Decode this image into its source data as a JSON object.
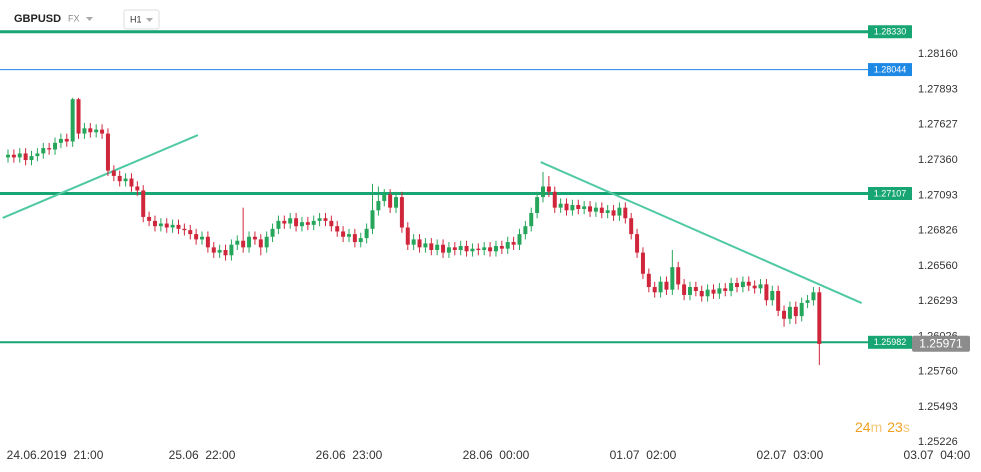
{
  "chart_data": {
    "type": "candlestick",
    "symbol": "GBPUSD",
    "market": "FX",
    "timeframe": "H1",
    "up_color": "#26a65b",
    "down_color": "#d0263b",
    "x": [
      0,
      1,
      2,
      3,
      4,
      5,
      6,
      7,
      8,
      9,
      10,
      11,
      12,
      13,
      14,
      15,
      16,
      17,
      18,
      19,
      20,
      21,
      22,
      23,
      24,
      25,
      26,
      27,
      28,
      29,
      30,
      31,
      32,
      33,
      34,
      35,
      36,
      37,
      38,
      39,
      40,
      41,
      42,
      43,
      44,
      45,
      46,
      47,
      48,
      49,
      50,
      51,
      52,
      53,
      54,
      55,
      56,
      57,
      58,
      59,
      60,
      61,
      62,
      63,
      64,
      65,
      66,
      67,
      68,
      69,
      70,
      71,
      72,
      73,
      74,
      75,
      76,
      77,
      78,
      79,
      80,
      81,
      82,
      83,
      84,
      85,
      86,
      87,
      88,
      89,
      90,
      91,
      92,
      93,
      94,
      95,
      96,
      97,
      98,
      99,
      100,
      101,
      102,
      103,
      104,
      105,
      106,
      107,
      108,
      109,
      110,
      111,
      112,
      113,
      114,
      115,
      116,
      117,
      118,
      119,
      120,
      121,
      122,
      123,
      124,
      125,
      126,
      127,
      128,
      129,
      130,
      131,
      132,
      133,
      134,
      135,
      136,
      137,
      138
    ],
    "open": [
      1.2738,
      1.274,
      1.2738,
      1.2741,
      1.2736,
      1.2739,
      1.2741,
      1.2745,
      1.2744,
      1.2749,
      1.2752,
      1.275,
      1.2782,
      1.2756,
      1.276,
      1.2757,
      1.2759,
      1.2756,
      1.2728,
      1.2724,
      1.272,
      1.2722,
      1.2716,
      1.2713,
      1.2693,
      1.269,
      1.2686,
      1.2688,
      1.2685,
      1.2687,
      1.2684,
      1.2683,
      1.268,
      1.2676,
      1.2678,
      1.267,
      1.2666,
      1.2668,
      1.2664,
      1.2672,
      1.2675,
      1.267,
      1.2678,
      1.2676,
      1.267,
      1.2678,
      1.2684,
      1.269,
      1.2688,
      1.2692,
      1.2686,
      1.2689,
      1.2687,
      1.269,
      1.2692,
      1.269,
      1.2686,
      1.2682,
      1.2678,
      1.268,
      1.2674,
      1.2677,
      1.2684,
      1.2698,
      1.2705,
      1.271,
      1.27,
      1.2708,
      1.2685,
      1.2672,
      1.2676,
      1.267,
      1.2673,
      1.2668,
      1.2672,
      1.2666,
      1.267,
      1.2668,
      1.2671,
      1.2667,
      1.2669,
      1.2668,
      1.267,
      1.2667,
      1.2671,
      1.2669,
      1.2674,
      1.2672,
      1.268,
      1.2686,
      1.2696,
      1.2708,
      1.2716,
      1.2712,
      1.27,
      1.2703,
      1.2698,
      1.2702,
      1.2699,
      1.2701,
      1.2697,
      1.27,
      1.2696,
      1.2698,
      1.2694,
      1.27,
      1.2692,
      1.268,
      1.2666,
      1.265,
      1.264,
      1.2636,
      1.2644,
      1.2638,
      1.2655,
      1.2642,
      1.2634,
      1.264,
      1.2637,
      1.2633,
      1.2638,
      1.2635,
      1.2639,
      1.2637,
      1.2643,
      1.264,
      1.2644,
      1.2641,
      1.2639,
      1.2642,
      1.263,
      1.2637,
      1.2622,
      1.2616,
      1.2625,
      1.2618,
      1.2628,
      1.263,
      1.2636
    ],
    "high": [
      1.2744,
      1.2744,
      1.2745,
      1.2745,
      1.2743,
      1.2745,
      1.2749,
      1.2749,
      1.2753,
      1.2756,
      1.2756,
      1.2783,
      1.2783,
      1.2764,
      1.2764,
      1.2763,
      1.2763,
      1.276,
      1.2732,
      1.2728,
      1.2726,
      1.2726,
      1.272,
      1.2717,
      1.2697,
      1.2694,
      1.2692,
      1.2692,
      1.2691,
      1.2691,
      1.2688,
      1.2687,
      1.2684,
      1.2682,
      1.2682,
      1.2674,
      1.2672,
      1.2672,
      1.2676,
      1.2679,
      1.27,
      1.2682,
      1.2682,
      1.268,
      1.2682,
      1.2688,
      1.2694,
      1.2694,
      1.2696,
      1.2696,
      1.2693,
      1.2693,
      1.2694,
      1.2696,
      1.2696,
      1.2694,
      1.269,
      1.2686,
      1.2684,
      1.2684,
      1.2681,
      1.2688,
      1.2718,
      1.2716,
      1.2714,
      1.2714,
      1.2712,
      1.2712,
      1.2689,
      1.268,
      1.268,
      1.2677,
      1.2677,
      1.2676,
      1.2676,
      1.2674,
      1.2674,
      1.2675,
      1.2675,
      1.2673,
      1.2673,
      1.2674,
      1.2674,
      1.2675,
      1.2675,
      1.2678,
      1.2678,
      1.2684,
      1.269,
      1.27,
      1.2712,
      1.2727,
      1.2724,
      1.2716,
      1.2707,
      1.2707,
      1.2706,
      1.2706,
      1.2705,
      1.2705,
      1.2704,
      1.2704,
      1.2702,
      1.2702,
      1.2704,
      1.2704,
      1.2696,
      1.2684,
      1.267,
      1.2654,
      1.2644,
      1.2648,
      1.2648,
      1.2668,
      1.2659,
      1.2646,
      1.2644,
      1.2644,
      1.2641,
      1.2642,
      1.2642,
      1.2643,
      1.2643,
      1.2647,
      1.2647,
      1.2648,
      1.2648,
      1.2645,
      1.2646,
      1.2646,
      1.2641,
      1.2641,
      1.2626,
      1.2629,
      1.2629,
      1.2632,
      1.2634,
      1.264,
      1.264
    ],
    "low": [
      1.2734,
      1.2734,
      1.2734,
      1.2732,
      1.2732,
      1.2735,
      1.2737,
      1.274,
      1.274,
      1.2745,
      1.2746,
      1.2746,
      1.2752,
      1.2752,
      1.2753,
      1.2753,
      1.2752,
      1.2724,
      1.272,
      1.2716,
      1.2716,
      1.2712,
      1.2709,
      1.2689,
      1.2686,
      1.2682,
      1.2682,
      1.2681,
      1.2681,
      1.268,
      1.2679,
      1.2676,
      1.2672,
      1.2672,
      1.2666,
      1.2662,
      1.2662,
      1.266,
      1.266,
      1.2668,
      1.2666,
      1.2666,
      1.2672,
      1.2664,
      1.2666,
      1.2674,
      1.268,
      1.2684,
      1.2684,
      1.2682,
      1.2682,
      1.2683,
      1.2683,
      1.2686,
      1.2686,
      1.2682,
      1.2678,
      1.2674,
      1.2674,
      1.267,
      1.267,
      1.2673,
      1.268,
      1.2694,
      1.2701,
      1.2696,
      1.2696,
      1.2681,
      1.2668,
      1.2668,
      1.2666,
      1.2666,
      1.2664,
      1.2664,
      1.2662,
      1.2662,
      1.2664,
      1.2664,
      1.2663,
      1.2663,
      1.2664,
      1.2664,
      1.2663,
      1.2663,
      1.2665,
      1.2665,
      1.2668,
      1.2668,
      1.2676,
      1.2682,
      1.2692,
      1.2704,
      1.2708,
      1.2696,
      1.2696,
      1.2694,
      1.2694,
      1.2695,
      1.2695,
      1.2693,
      1.2693,
      1.2692,
      1.2692,
      1.269,
      1.269,
      1.2688,
      1.2676,
      1.2662,
      1.2646,
      1.2636,
      1.2632,
      1.2632,
      1.2634,
      1.2634,
      1.2638,
      1.263,
      1.263,
      1.2633,
      1.2629,
      1.2629,
      1.2631,
      1.2631,
      1.2633,
      1.2633,
      1.2636,
      1.2636,
      1.2637,
      1.2635,
      1.2635,
      1.2626,
      1.2626,
      1.2618,
      1.261,
      1.2612,
      1.2612,
      1.2614,
      1.2624,
      1.2626,
      1.2581
    ],
    "close": [
      1.274,
      1.2738,
      1.2741,
      1.2736,
      1.2739,
      1.2741,
      1.2745,
      1.2744,
      1.2749,
      1.2752,
      1.275,
      1.2782,
      1.2756,
      1.276,
      1.2757,
      1.2759,
      1.2756,
      1.2728,
      1.2724,
      1.272,
      1.2722,
      1.2716,
      1.2713,
      1.2693,
      1.269,
      1.2686,
      1.2688,
      1.2685,
      1.2687,
      1.2684,
      1.2683,
      1.268,
      1.2676,
      1.2678,
      1.267,
      1.2666,
      1.2668,
      1.2664,
      1.2672,
      1.2675,
      1.267,
      1.2678,
      1.2676,
      1.267,
      1.2678,
      1.2684,
      1.269,
      1.2688,
      1.2692,
      1.2686,
      1.2689,
      1.2687,
      1.269,
      1.2692,
      1.269,
      1.2686,
      1.2682,
      1.2678,
      1.268,
      1.2674,
      1.2677,
      1.2684,
      1.2698,
      1.2705,
      1.271,
      1.27,
      1.2708,
      1.2685,
      1.2672,
      1.2676,
      1.267,
      1.2673,
      1.2668,
      1.2672,
      1.2666,
      1.267,
      1.2668,
      1.2671,
      1.2667,
      1.2669,
      1.2668,
      1.267,
      1.2667,
      1.2671,
      1.2669,
      1.2674,
      1.2672,
      1.268,
      1.2686,
      1.2696,
      1.2708,
      1.2716,
      1.2712,
      1.27,
      1.2703,
      1.2698,
      1.2702,
      1.2699,
      1.2701,
      1.2697,
      1.27,
      1.2696,
      1.2698,
      1.2694,
      1.27,
      1.2692,
      1.268,
      1.2666,
      1.265,
      1.264,
      1.2636,
      1.2644,
      1.2638,
      1.2655,
      1.2642,
      1.2634,
      1.264,
      1.2637,
      1.2633,
      1.2638,
      1.2635,
      1.2639,
      1.2637,
      1.2643,
      1.264,
      1.2644,
      1.2641,
      1.2639,
      1.2642,
      1.263,
      1.2637,
      1.2622,
      1.2616,
      1.2625,
      1.2618,
      1.2628,
      1.263,
      1.2636,
      1.2597
    ],
    "xlim": [
      -1.36,
      165.5
    ],
    "ylim": [
      1.2513,
      1.2857
    ],
    "xticks": [
      {
        "value": 8,
        "label": "24.06.2019  21:00"
      },
      {
        "value": 33,
        "label": "25.06  22:00"
      },
      {
        "value": 58,
        "label": "26.06  23:00"
      },
      {
        "value": 83,
        "label": "28.06  00:00"
      },
      {
        "value": 108,
        "label": "01.07  02:00"
      },
      {
        "value": 133,
        "label": "02.07  03:00"
      },
      {
        "value": 158,
        "label": "03.07  04:00"
      }
    ],
    "yticks": [
      {
        "value": 1.2816,
        "label": "1.28160"
      },
      {
        "value": 1.27893,
        "label": "1.27893"
      },
      {
        "value": 1.27627,
        "label": "1.27627"
      },
      {
        "value": 1.2736,
        "label": "1.27360"
      },
      {
        "value": 1.27093,
        "label": "1.27093"
      },
      {
        "value": 1.26826,
        "label": "1.26826"
      },
      {
        "value": 1.2656,
        "label": "1.26560"
      },
      {
        "value": 1.26293,
        "label": "1.26293"
      },
      {
        "value": 1.26026,
        "label": "1.26026"
      },
      {
        "value": 1.2576,
        "label": "1.25760"
      },
      {
        "value": 1.25493,
        "label": "1.25493"
      },
      {
        "value": 1.25226,
        "label": "1.25226"
      }
    ],
    "levels": [
      {
        "value": 1.2833,
        "label": "1.28330",
        "color": "#17a673",
        "width": 3
      },
      {
        "value": 1.28044,
        "label": "1.28044",
        "color": "#1e88e5",
        "width": 1
      },
      {
        "value": 1.27107,
        "label": "1.27107",
        "color": "#17a673",
        "width": 3
      },
      {
        "value": 1.25982,
        "label": "1.25982",
        "color": "#17a673",
        "width": 2
      }
    ],
    "trendlines": [
      {
        "x": [
          -0.9,
          32.3
        ],
        "y": [
          1.26922,
          1.27549
        ],
        "color": "#4fc9a4"
      },
      {
        "x": [
          90.6,
          145.2
        ],
        "y": [
          1.27345,
          1.26279
        ],
        "color": "#4fc9a4"
      }
    ],
    "current_price": {
      "value": 1.25971,
      "label": "1.25971",
      "color": "#8c8c8c"
    },
    "timer": {
      "minutes": "24",
      "minutes_unit": "m",
      "seconds": "23",
      "seconds_unit": "s"
    }
  }
}
